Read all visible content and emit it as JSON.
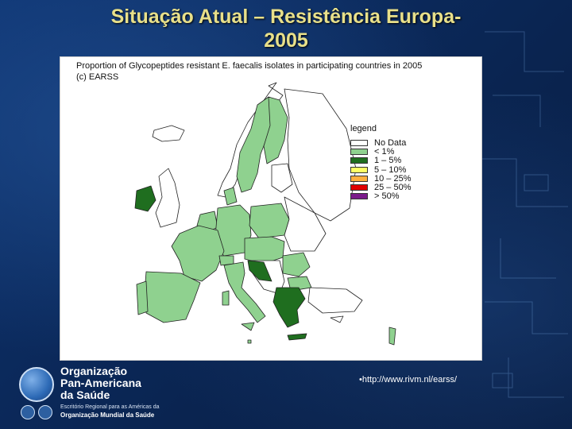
{
  "slide": {
    "title_line1": "Situação Atual – Resistência Europa-",
    "title_line2": "2005"
  },
  "map": {
    "heading_line1": "Proportion of Glycopeptides resistant E. faecalis isolates in participating countries in 2005",
    "heading_line2": "(c) EARSS",
    "legend_title": "legend",
    "legend": [
      {
        "label": "No Data",
        "color": "#ffffff"
      },
      {
        "label": "< 1%",
        "color": "#8fd18f"
      },
      {
        "label": "1 – 5%",
        "color": "#1f6e1f"
      },
      {
        "label": "5 – 10%",
        "color": "#ffff66"
      },
      {
        "label": "10 – 25%",
        "color": "#ffb040"
      },
      {
        "label": "25 – 50%",
        "color": "#e00000"
      },
      {
        "label": "> 50%",
        "color": "#7a1a8a"
      }
    ],
    "colors": {
      "light_green": "#8fd18f",
      "dark_green": "#1f6e1f",
      "no_data": "#ffffff",
      "border": "#222222"
    }
  },
  "footer": {
    "org_line1": "Organização",
    "org_line2": "Pan-Americana",
    "org_line3": "da Saúde",
    "org_small": "Escritório Regional para as Américas da",
    "org_sub": "Organização Mundial da Saúde",
    "url": "•http://www.rivm.nl/earss/"
  }
}
